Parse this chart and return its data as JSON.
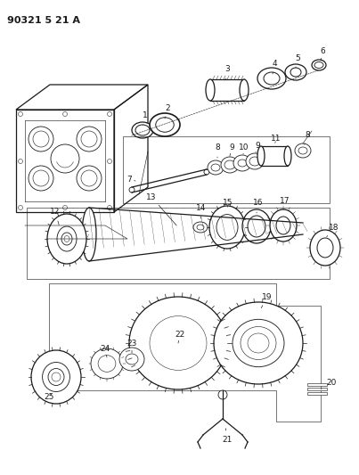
{
  "title": "90321 5 21 A",
  "bg_color": "#ffffff",
  "line_color": "#1a1a1a",
  "figsize": [
    4.03,
    5.33
  ],
  "dpi": 100,
  "lw_main": 0.9,
  "lw_thin": 0.6,
  "lw_thick": 1.2
}
